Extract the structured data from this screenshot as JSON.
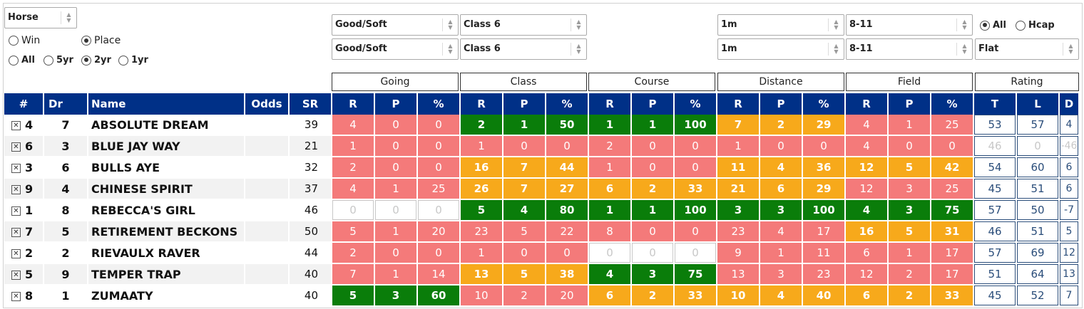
{
  "filters": {
    "type_select": "Horse",
    "mode": {
      "win": "Win",
      "place": "Place",
      "selected": "Place"
    },
    "period": {
      "all": "All",
      "5yr": "5yr",
      "2yr": "2yr",
      "1yr": "1yr",
      "selected": "2yr"
    },
    "going_top": "Good/Soft",
    "going_bottom": "Good/Soft",
    "class_top": "Class 6",
    "class_bottom": "Class 6",
    "distance_top": "1m",
    "distance_bottom": "1m",
    "field_top": "8-11",
    "field_bottom": "8-11",
    "race_type": {
      "all": "All",
      "hcap": "Hcap",
      "selected": "All"
    },
    "surface_select": "Flat"
  },
  "groups": [
    "Going",
    "Class",
    "Course",
    "Distance",
    "Field",
    "Rating"
  ],
  "headers": {
    "num": "#",
    "dr": "Dr",
    "name": "Name",
    "odds": "Odds",
    "sr": "SR",
    "r": "R",
    "p": "P",
    "pct": "%",
    "t": "T",
    "l": "L",
    "d": "D"
  },
  "colors": {
    "header": "#003087",
    "red": "#f47a7a",
    "green": "#0a7d0a",
    "orange": "#f7a91b"
  },
  "rows": [
    {
      "num": "4",
      "dr": "7",
      "name": "ABSOLUTE DREAM",
      "odds": "",
      "sr": "39",
      "stats": [
        [
          "4",
          "0",
          "0",
          "red"
        ],
        [
          "2",
          "1",
          "50",
          "grn"
        ],
        [
          "1",
          "1",
          "100",
          "grn"
        ],
        [
          "7",
          "2",
          "29",
          "org"
        ],
        [
          "4",
          "1",
          "25",
          "red"
        ]
      ],
      "rating": [
        "53",
        "57",
        "4"
      ],
      "rating_dim": false
    },
    {
      "num": "6",
      "dr": "3",
      "name": "BLUE JAY WAY",
      "odds": "",
      "sr": "21",
      "stats": [
        [
          "1",
          "0",
          "0",
          "red"
        ],
        [
          "1",
          "0",
          "0",
          "red"
        ],
        [
          "2",
          "0",
          "0",
          "red"
        ],
        [
          "1",
          "0",
          "0",
          "red"
        ],
        [
          "4",
          "0",
          "0",
          "red"
        ]
      ],
      "rating": [
        "46",
        "0",
        "-46"
      ],
      "rating_dim": true
    },
    {
      "num": "3",
      "dr": "6",
      "name": "BULLS AYE",
      "odds": "",
      "sr": "32",
      "stats": [
        [
          "2",
          "0",
          "0",
          "red"
        ],
        [
          "16",
          "7",
          "44",
          "org"
        ],
        [
          "1",
          "0",
          "0",
          "red"
        ],
        [
          "11",
          "4",
          "36",
          "org"
        ],
        [
          "12",
          "5",
          "42",
          "org"
        ]
      ],
      "rating": [
        "54",
        "60",
        "6"
      ],
      "rating_dim": false
    },
    {
      "num": "9",
      "dr": "4",
      "name": "CHINESE SPIRIT",
      "odds": "",
      "sr": "37",
      "stats": [
        [
          "4",
          "1",
          "25",
          "red"
        ],
        [
          "26",
          "7",
          "27",
          "org"
        ],
        [
          "6",
          "2",
          "33",
          "org"
        ],
        [
          "21",
          "6",
          "29",
          "org"
        ],
        [
          "12",
          "3",
          "25",
          "red"
        ]
      ],
      "rating": [
        "45",
        "51",
        "6"
      ],
      "rating_dim": false
    },
    {
      "num": "1",
      "dr": "8",
      "name": "REBECCA'S GIRL",
      "odds": "",
      "sr": "46",
      "stats": [
        [
          "0",
          "0",
          "0",
          "emp"
        ],
        [
          "5",
          "4",
          "80",
          "grn"
        ],
        [
          "1",
          "1",
          "100",
          "grn"
        ],
        [
          "3",
          "3",
          "100",
          "grn"
        ],
        [
          "4",
          "3",
          "75",
          "grn"
        ]
      ],
      "rating": [
        "57",
        "50",
        "-7"
      ],
      "rating_dim": false
    },
    {
      "num": "7",
      "dr": "5",
      "name": "RETIREMENT BECKONS",
      "odds": "",
      "sr": "50",
      "stats": [
        [
          "5",
          "1",
          "20",
          "red"
        ],
        [
          "23",
          "5",
          "22",
          "red"
        ],
        [
          "8",
          "0",
          "0",
          "red"
        ],
        [
          "23",
          "4",
          "17",
          "red"
        ],
        [
          "16",
          "5",
          "31",
          "org"
        ]
      ],
      "rating": [
        "46",
        "51",
        "5"
      ],
      "rating_dim": false
    },
    {
      "num": "2",
      "dr": "2",
      "name": "RIEVAULX RAVER",
      "odds": "",
      "sr": "44",
      "stats": [
        [
          "2",
          "0",
          "0",
          "red"
        ],
        [
          "1",
          "0",
          "0",
          "red"
        ],
        [
          "0",
          "0",
          "0",
          "emp"
        ],
        [
          "9",
          "1",
          "11",
          "red"
        ],
        [
          "6",
          "1",
          "17",
          "red"
        ]
      ],
      "rating": [
        "57",
        "69",
        "12"
      ],
      "rating_dim": false
    },
    {
      "num": "5",
      "dr": "9",
      "name": "TEMPER TRAP",
      "odds": "",
      "sr": "40",
      "stats": [
        [
          "7",
          "1",
          "14",
          "red"
        ],
        [
          "13",
          "5",
          "38",
          "org"
        ],
        [
          "4",
          "3",
          "75",
          "grn"
        ],
        [
          "13",
          "3",
          "23",
          "red"
        ],
        [
          "12",
          "2",
          "17",
          "red"
        ]
      ],
      "rating": [
        "51",
        "64",
        "13"
      ],
      "rating_dim": false
    },
    {
      "num": "8",
      "dr": "1",
      "name": "ZUMAATY",
      "odds": "",
      "sr": "40",
      "stats": [
        [
          "5",
          "3",
          "60",
          "grn"
        ],
        [
          "10",
          "2",
          "20",
          "red"
        ],
        [
          "6",
          "2",
          "33",
          "org"
        ],
        [
          "10",
          "4",
          "40",
          "org"
        ],
        [
          "6",
          "2",
          "33",
          "org"
        ]
      ],
      "rating": [
        "45",
        "52",
        "7"
      ],
      "rating_dim": false
    }
  ]
}
